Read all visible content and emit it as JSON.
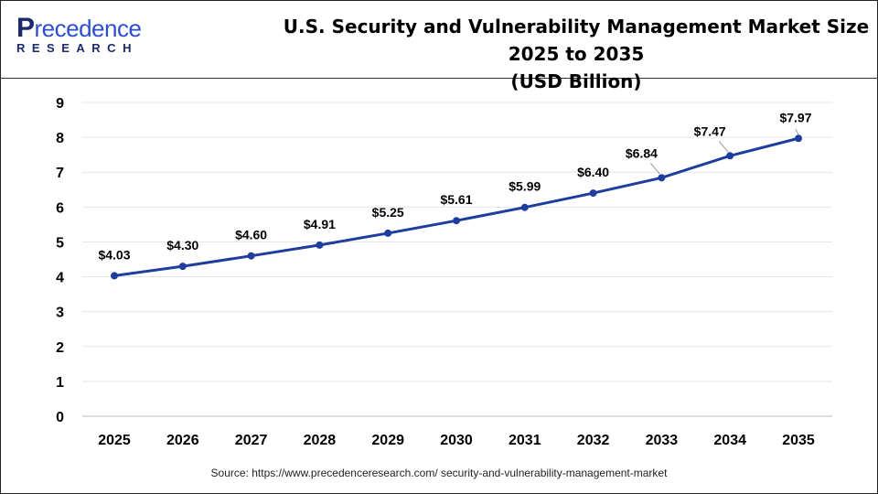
{
  "logo": {
    "text_top": "Precedence",
    "text_bottom": "RESEARCH"
  },
  "header": {
    "title_line1": "U.S. Security and Vulnerability Management Market Size 2025 to 2035",
    "title_line2": "(USD Billion)"
  },
  "source": "Source: https://www.precedenceresearch.com/ security-and-vulnerability-management-market",
  "colors": {
    "line": "#1f3d9e",
    "grid": "#e6e6e6",
    "text": "#000000"
  },
  "chart_data": {
    "type": "line",
    "title": "U.S. Security and Vulnerability Management Market Size 2025 to 2035 (USD Billion)",
    "xlabel": "",
    "ylabel": "",
    "categories": [
      "2025",
      "2026",
      "2027",
      "2028",
      "2029",
      "2030",
      "2031",
      "2032",
      "2033",
      "2034",
      "2035"
    ],
    "values": [
      4.03,
      4.3,
      4.6,
      4.91,
      5.25,
      5.61,
      5.99,
      6.4,
      6.84,
      7.47,
      7.97
    ],
    "data_labels": [
      "$4.03",
      "$4.30",
      "$4.60",
      "$4.91",
      "$5.25",
      "$5.61",
      "$5.99",
      "$6.40",
      "$6.84",
      "$7.47",
      "$7.97"
    ],
    "ylim": [
      0,
      9
    ],
    "yticks": [
      0,
      1,
      2,
      3,
      4,
      5,
      6,
      7,
      8,
      9
    ],
    "grid": true,
    "legend": "none"
  }
}
